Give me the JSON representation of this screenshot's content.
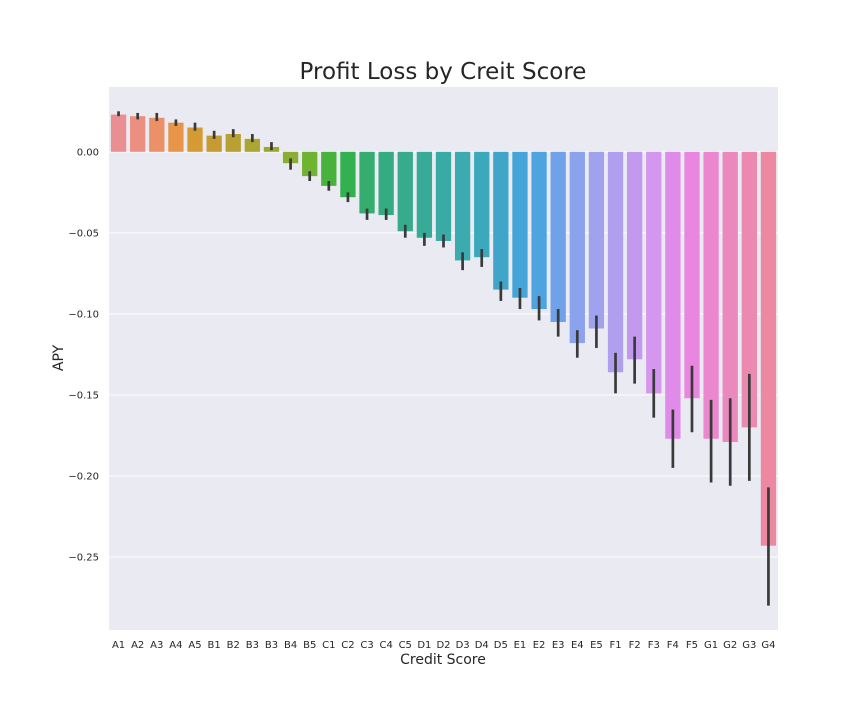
{
  "chart_data": {
    "type": "bar",
    "title": "Profit Loss by Creit Score",
    "xlabel": "Credit Score",
    "ylabel": "APY",
    "ylim": [
      -0.295,
      0.04
    ],
    "yticks": [
      0.0,
      -0.05,
      -0.1,
      -0.15,
      -0.2,
      -0.25
    ],
    "ytick_labels": [
      "0.00",
      "−0.05",
      "−0.10",
      "−0.15",
      "−0.20",
      "−0.25"
    ],
    "grid": true,
    "legend": "none",
    "categories": [
      "A1",
      "A2",
      "A3",
      "A4",
      "A5",
      "B1",
      "B2",
      "B3",
      "B3",
      "B4",
      "B5",
      "C1",
      "C2",
      "C3",
      "C4",
      "C5",
      "D1",
      "D2",
      "D3",
      "D4",
      "D5",
      "E1",
      "E2",
      "E3",
      "E4",
      "E5",
      "F1",
      "F2",
      "F3",
      "F4",
      "F5",
      "G1",
      "G2",
      "G3",
      "G4"
    ],
    "values": [
      0.023,
      0.022,
      0.021,
      0.018,
      0.015,
      0.01,
      0.011,
      0.008,
      0.003,
      -0.007,
      -0.015,
      -0.021,
      -0.028,
      -0.038,
      -0.039,
      -0.049,
      -0.053,
      -0.055,
      -0.067,
      -0.065,
      -0.085,
      -0.09,
      -0.097,
      -0.105,
      -0.118,
      -0.109,
      -0.136,
      -0.128,
      -0.149,
      -0.177,
      -0.152,
      -0.177,
      -0.179,
      -0.17,
      -0.243
    ],
    "errors": [
      [
        0.022,
        0.025
      ],
      [
        0.02,
        0.024
      ],
      [
        0.019,
        0.024
      ],
      [
        0.016,
        0.02
      ],
      [
        0.013,
        0.018
      ],
      [
        0.008,
        0.013
      ],
      [
        0.009,
        0.014
      ],
      [
        0.006,
        0.011
      ],
      [
        0.001,
        0.006
      ],
      [
        -0.011,
        -0.004
      ],
      [
        -0.018,
        -0.012
      ],
      [
        -0.024,
        -0.018
      ],
      [
        -0.031,
        -0.025
      ],
      [
        -0.042,
        -0.035
      ],
      [
        -0.042,
        -0.035
      ],
      [
        -0.053,
        -0.045
      ],
      [
        -0.058,
        -0.05
      ],
      [
        -0.059,
        -0.051
      ],
      [
        -0.073,
        -0.062
      ],
      [
        -0.071,
        -0.06
      ],
      [
        -0.092,
        -0.08
      ],
      [
        -0.097,
        -0.084
      ],
      [
        -0.104,
        -0.089
      ],
      [
        -0.114,
        -0.097
      ],
      [
        -0.127,
        -0.11
      ],
      [
        -0.121,
        -0.101
      ],
      [
        -0.149,
        -0.124
      ],
      [
        -0.143,
        -0.114
      ],
      [
        -0.164,
        -0.134
      ],
      [
        -0.195,
        -0.159
      ],
      [
        -0.173,
        -0.132
      ],
      [
        -0.204,
        -0.153
      ],
      [
        -0.206,
        -0.152
      ],
      [
        -0.203,
        -0.137
      ],
      [
        -0.28,
        -0.207
      ]
    ],
    "colors": [
      "#ea8f91",
      "#eb8f80",
      "#ec9167",
      "#e89549",
      "#d49a34",
      "#c69b32",
      "#b9a032",
      "#aba531",
      "#9ca830",
      "#8aae31",
      "#6fb431",
      "#48b33c",
      "#33b050",
      "#34ad6e",
      "#34ab80",
      "#37ab8c",
      "#38aa98",
      "#3aaba4",
      "#3cabb0",
      "#3ba8bb",
      "#3fa6c9",
      "#45a5d9",
      "#4fa4e0",
      "#70a2e9",
      "#8ba2ec",
      "#a0a2ed",
      "#b09eee",
      "#c299ee",
      "#d496ee",
      "#e08ae9",
      "#e987e0",
      "#ea87cf",
      "#eb88be",
      "#ec89b0",
      "#ec89a1"
    ],
    "error_color": "#3a3a3a",
    "background": "#eaeaf2",
    "grid_color": "#ffffff"
  }
}
